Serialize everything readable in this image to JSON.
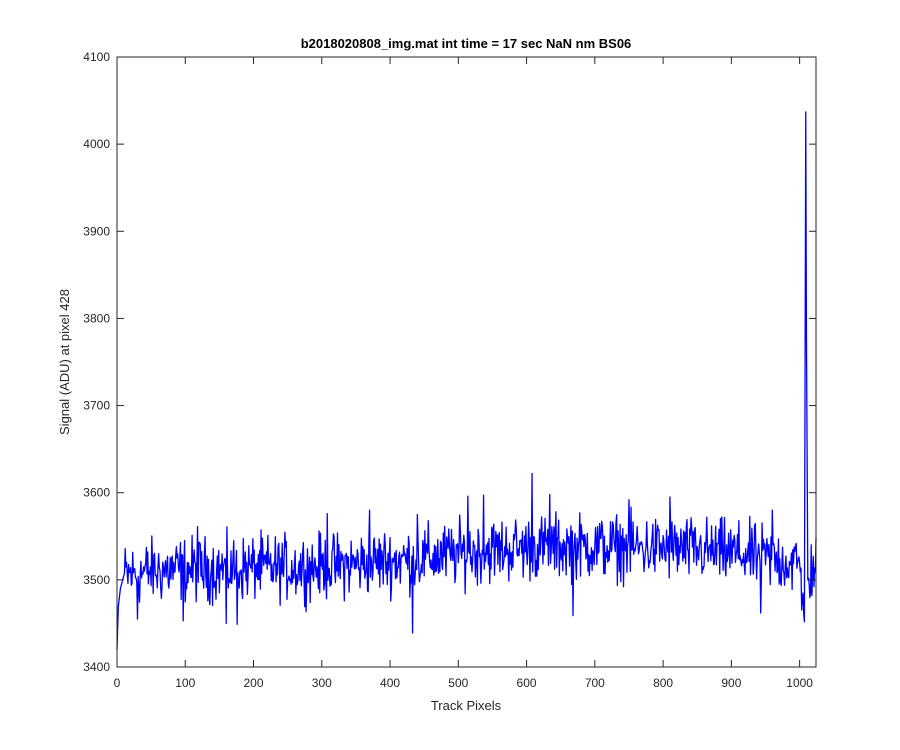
{
  "chart_data": {
    "type": "line",
    "title": "b2018020808_img.mat int time = 17 sec  NaN nm BS06",
    "xlabel": "Track Pixels",
    "ylabel": "Signal (ADU) at pixel 428",
    "xlim": [
      0,
      1024
    ],
    "ylim": [
      3400,
      4100
    ],
    "xticks": [
      0,
      100,
      200,
      300,
      400,
      500,
      600,
      700,
      800,
      900,
      1000
    ],
    "xtick_labels": [
      "0",
      "100",
      "200",
      "300",
      "400",
      "500",
      "600",
      "700",
      "800",
      "900",
      "1000"
    ],
    "yticks": [
      3400,
      3500,
      3600,
      3700,
      3800,
      3900,
      4000,
      4100
    ],
    "ytick_labels": [
      "3400",
      "3500",
      "3600",
      "3700",
      "3800",
      "3900",
      "4000",
      "4100"
    ],
    "grid": false,
    "series": [
      {
        "color": "#0000ff",
        "points_per_segment": 16,
        "anchors": [
          {
            "x": 0,
            "y": 3420
          },
          {
            "x": 2,
            "y": 3470
          },
          {
            "x": 5,
            "y": 3490
          },
          {
            "x": 10,
            "y": 3505
          },
          {
            "x": 50,
            "y": 3510
          },
          {
            "x": 100,
            "y": 3512
          },
          {
            "x": 150,
            "y": 3512
          },
          {
            "x": 200,
            "y": 3514
          },
          {
            "x": 250,
            "y": 3514
          },
          {
            "x": 300,
            "y": 3515
          },
          {
            "x": 350,
            "y": 3518
          },
          {
            "x": 400,
            "y": 3522
          },
          {
            "x": 450,
            "y": 3525
          },
          {
            "x": 500,
            "y": 3530
          },
          {
            "x": 550,
            "y": 3534
          },
          {
            "x": 600,
            "y": 3537
          },
          {
            "x": 650,
            "y": 3538
          },
          {
            "x": 700,
            "y": 3538
          },
          {
            "x": 750,
            "y": 3537
          },
          {
            "x": 800,
            "y": 3536
          },
          {
            "x": 850,
            "y": 3534
          },
          {
            "x": 900,
            "y": 3531
          },
          {
            "x": 950,
            "y": 3525
          },
          {
            "x": 1000,
            "y": 3518
          },
          {
            "x": 1007,
            "y": 3452
          },
          {
            "x": 1009,
            "y": 4037
          },
          {
            "x": 1010,
            "y": 3780
          },
          {
            "x": 1012,
            "y": 3500
          },
          {
            "x": 1024,
            "y": 3522
          }
        ],
        "y_noise_amplitude": 18,
        "features": [
          {
            "x": 30,
            "y": 3455
          },
          {
            "x": 97,
            "y": 3453
          },
          {
            "x": 118,
            "y": 3561
          },
          {
            "x": 160,
            "y": 3450
          },
          {
            "x": 176,
            "y": 3449
          },
          {
            "x": 308,
            "y": 3576
          },
          {
            "x": 370,
            "y": 3580
          },
          {
            "x": 433,
            "y": 3439
          },
          {
            "x": 440,
            "y": 3575
          },
          {
            "x": 514,
            "y": 3596
          },
          {
            "x": 537,
            "y": 3597
          },
          {
            "x": 608,
            "y": 3622
          },
          {
            "x": 634,
            "y": 3598
          },
          {
            "x": 668,
            "y": 3459
          },
          {
            "x": 750,
            "y": 3592
          },
          {
            "x": 810,
            "y": 3595
          },
          {
            "x": 943,
            "y": 3462
          },
          {
            "x": 960,
            "y": 3580
          }
        ]
      }
    ]
  }
}
